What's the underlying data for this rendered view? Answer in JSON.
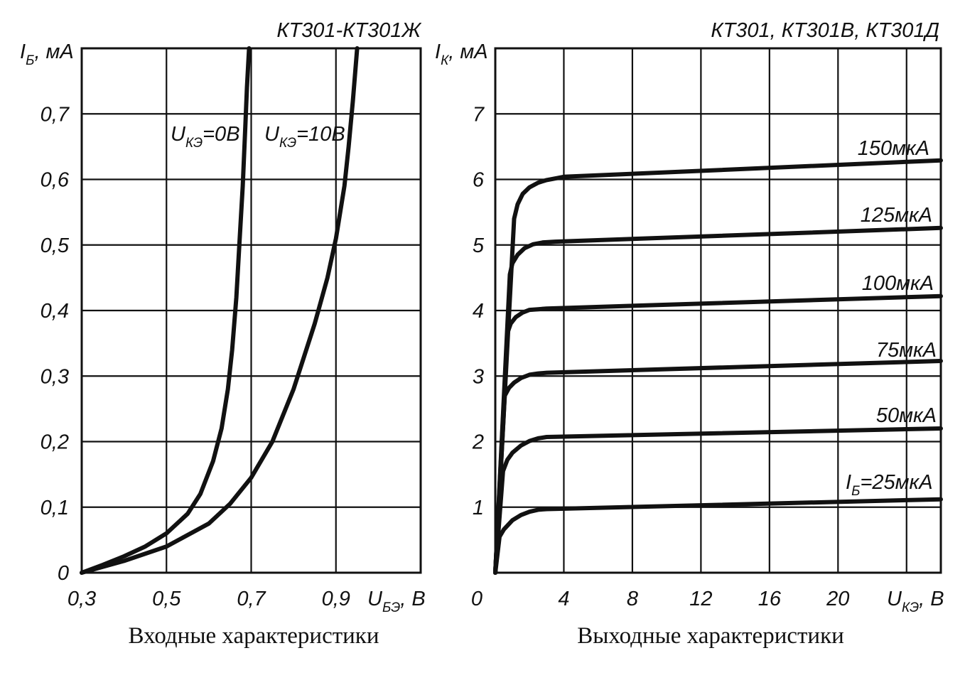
{
  "chart_data": [
    {
      "type": "line",
      "title": "КТ301-КТ301Ж",
      "caption": "Входные характеристики",
      "ylabel": {
        "main": "I",
        "sub": "Б",
        "unit": ", мА"
      },
      "xlabel": {
        "main": "U",
        "sub": "БЭ",
        "unit": ", В"
      },
      "xlim": [
        0.3,
        1.1
      ],
      "ylim": [
        0,
        0.8
      ],
      "grid": true,
      "x_ticks": [
        "0,3",
        "0,5",
        "0,7",
        "0,9"
      ],
      "x_tick_values": [
        0.3,
        0.5,
        0.7,
        0.9
      ],
      "y_ticks": [
        "0",
        "0,1",
        "0,2",
        "0,3",
        "0,4",
        "0,5",
        "0,6",
        "0,7"
      ],
      "y_tick_values": [
        0,
        0.1,
        0.2,
        0.3,
        0.4,
        0.5,
        0.6,
        0.7
      ],
      "series": [
        {
          "name_main": "U",
          "name_sub": "КЭ",
          "name_val": "=0В",
          "x": [
            0.3,
            0.35,
            0.4,
            0.45,
            0.5,
            0.55,
            0.58,
            0.61,
            0.63,
            0.645,
            0.655,
            0.665,
            0.672,
            0.68,
            0.686,
            0.69,
            0.695
          ],
          "y": [
            0.0,
            0.012,
            0.025,
            0.04,
            0.06,
            0.09,
            0.12,
            0.17,
            0.22,
            0.28,
            0.34,
            0.42,
            0.5,
            0.59,
            0.68,
            0.74,
            0.8
          ]
        },
        {
          "name_main": "U",
          "name_sub": "КЭ",
          "name_val": "=10В",
          "x": [
            0.3,
            0.4,
            0.5,
            0.6,
            0.65,
            0.7,
            0.75,
            0.8,
            0.85,
            0.88,
            0.9,
            0.92,
            0.93,
            0.94,
            0.95
          ],
          "y": [
            0.0,
            0.018,
            0.04,
            0.075,
            0.105,
            0.145,
            0.2,
            0.28,
            0.38,
            0.45,
            0.51,
            0.59,
            0.65,
            0.72,
            0.8
          ]
        }
      ]
    },
    {
      "type": "line",
      "title": "КТ301, КТ301В, КТ301Д",
      "caption": "Выходные характеристики",
      "ylabel": {
        "main": "I",
        "sub": "К",
        "unit": ", мА"
      },
      "xlabel": {
        "main": "U",
        "sub": "КЭ",
        "unit": ", В"
      },
      "xlim": [
        0,
        26
      ],
      "ylim": [
        0,
        8
      ],
      "grid": true,
      "x_ticks": [
        "0",
        "4",
        "8",
        "12",
        "16",
        "20"
      ],
      "x_tick_values": [
        0,
        4,
        8,
        12,
        16,
        20
      ],
      "y_ticks": [
        "1",
        "2",
        "3",
        "4",
        "5",
        "6",
        "7"
      ],
      "y_tick_values": [
        1,
        2,
        3,
        4,
        5,
        6,
        7
      ],
      "series": [
        {
          "name": "I",
          "name_sub": "Б",
          "name_val": "=25мкА",
          "x": [
            0,
            0.25,
            0.5,
            1.0,
            1.5,
            2.0,
            2.5,
            3.0,
            26
          ],
          "y": [
            0,
            0.55,
            0.66,
            0.8,
            0.88,
            0.93,
            0.96,
            0.97,
            1.12
          ]
        },
        {
          "name_val": "50мкА",
          "x": [
            0,
            0.45,
            0.7,
            1.0,
            1.5,
            2.0,
            2.5,
            3.0,
            26
          ],
          "y": [
            0,
            1.55,
            1.72,
            1.83,
            1.94,
            2.01,
            2.05,
            2.07,
            2.2
          ]
        },
        {
          "name_val": "75мкА",
          "x": [
            0,
            0.55,
            0.8,
            1.1,
            1.5,
            2.0,
            2.5,
            3.0,
            26
          ],
          "y": [
            0,
            2.7,
            2.82,
            2.9,
            2.97,
            3.02,
            3.04,
            3.05,
            3.23
          ]
        },
        {
          "name_val": "100мкА",
          "x": [
            0,
            0.7,
            0.9,
            1.2,
            1.6,
            2.0,
            2.5,
            3.0,
            26
          ],
          "y": [
            0,
            3.65,
            3.8,
            3.9,
            3.97,
            4.01,
            4.02,
            4.03,
            4.22
          ]
        },
        {
          "name_val": "125мкА",
          "x": [
            0,
            0.85,
            1.0,
            1.3,
            1.7,
            2.2,
            2.8,
            3.5,
            26
          ],
          "y": [
            0,
            4.55,
            4.72,
            4.85,
            4.95,
            5.01,
            5.04,
            5.05,
            5.26
          ]
        },
        {
          "name_val": "150мкА",
          "x": [
            0,
            1.1,
            1.3,
            1.6,
            2.0,
            2.5,
            3.0,
            3.6,
            4.0,
            26
          ],
          "y": [
            0,
            5.4,
            5.62,
            5.78,
            5.88,
            5.95,
            5.99,
            6.02,
            6.04,
            6.29
          ]
        }
      ]
    }
  ]
}
